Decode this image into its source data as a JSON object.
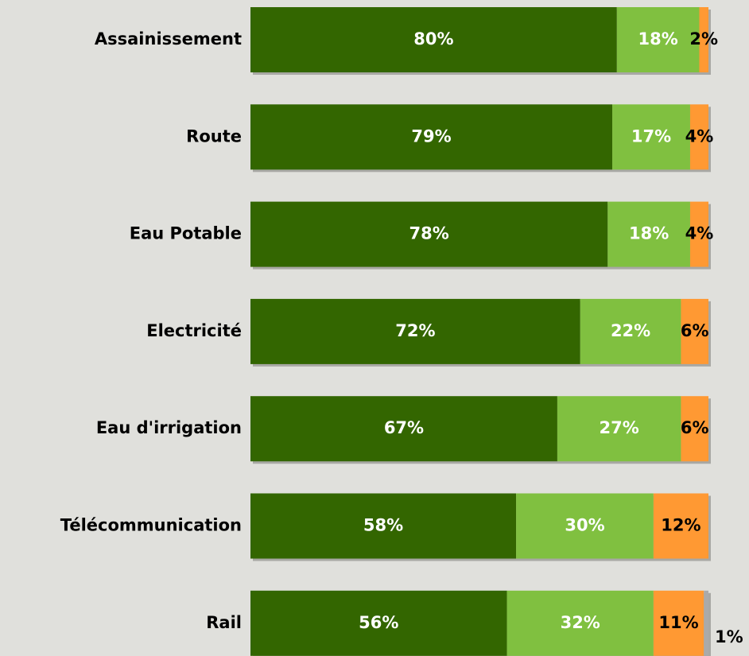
{
  "chart_data": {
    "type": "stacked-bar-horizontal",
    "categories": [
      "Assainissement",
      "Route",
      "Eau Potable",
      "Electricité",
      "Eau d'irrigation",
      "Télécommunication",
      "Rail"
    ],
    "xlim": [
      0,
      100
    ],
    "series": [
      {
        "color": "#336600",
        "label_color": "#ffffff",
        "values": [
          80,
          79,
          78,
          72,
          67,
          58,
          56
        ],
        "value_labels": [
          "80%",
          "79%",
          "78%",
          "72%",
          "67%",
          "58%",
          "56%"
        ]
      },
      {
        "color": "#80c040",
        "label_color": "#ffffff",
        "values": [
          18,
          17,
          18,
          22,
          27,
          30,
          32
        ],
        "value_labels": [
          "18%",
          "17%",
          "18%",
          "22%",
          "27%",
          "30%",
          "32%"
        ]
      },
      {
        "color": "#ff9933",
        "label_color": "#000000",
        "values": [
          2,
          4,
          4,
          6,
          6,
          12,
          11
        ],
        "value_labels": [
          "2%",
          "4%",
          "4%",
          "6%",
          "6%",
          "12%",
          "11%"
        ]
      },
      {
        "color": "#aaaaaa",
        "label_color": "#000000",
        "values": [
          null,
          null,
          null,
          null,
          null,
          null,
          1
        ],
        "value_labels": [
          null,
          null,
          null,
          null,
          null,
          null,
          "1%"
        ]
      }
    ]
  }
}
